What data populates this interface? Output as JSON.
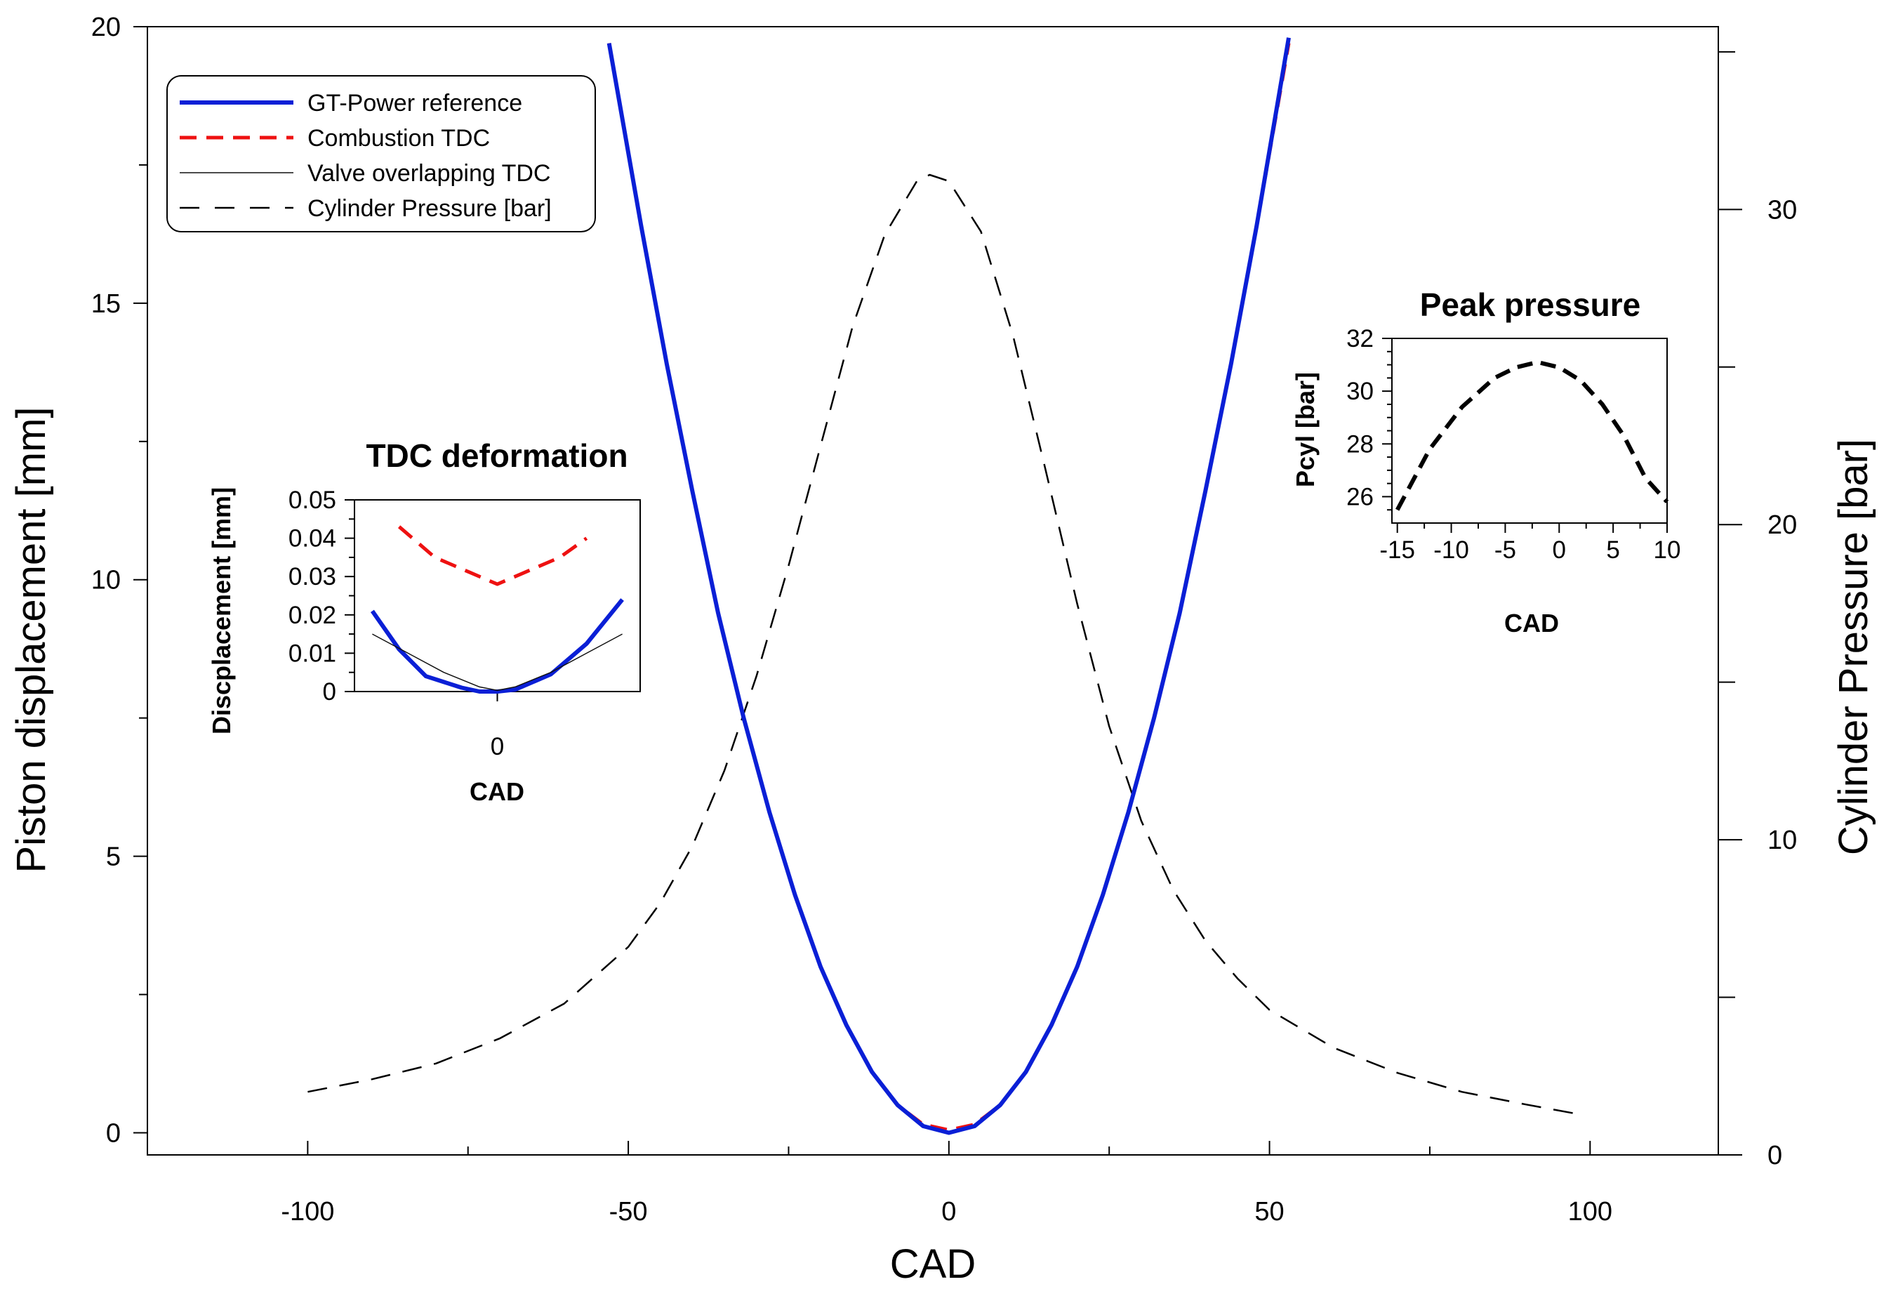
{
  "chart_data": {
    "type": "line",
    "main": {
      "xlabel": "CAD",
      "ylabel": "Piston displacement [mm]",
      "y2label": "Cylinder Pressure [bar]",
      "xlim": [
        -125,
        120
      ],
      "ylim": [
        -0.4,
        20
      ],
      "y2lim": [
        0,
        35.8
      ],
      "xticks": [
        -100,
        -50,
        0,
        50,
        100
      ],
      "yticks": [
        0,
        5,
        10,
        15,
        20
      ],
      "y2ticks": [
        0,
        10,
        20,
        30
      ],
      "legend_position": "top-left",
      "series": [
        {
          "name": "GT-Power reference",
          "axis": "left",
          "style": "solid-blue-thick",
          "x": [
            -53,
            -48,
            -44,
            -40,
            -36,
            -32,
            -28,
            -24,
            -20,
            -16,
            -12,
            -8,
            -4,
            0,
            4,
            8,
            12,
            16,
            20,
            24,
            28,
            32,
            36,
            40,
            44,
            48,
            53
          ],
          "y": [
            19.7,
            16.4,
            13.9,
            11.6,
            9.4,
            7.5,
            5.8,
            4.3,
            3.0,
            1.95,
            1.1,
            0.5,
            0.12,
            0.0,
            0.12,
            0.5,
            1.1,
            1.95,
            3.0,
            4.3,
            5.8,
            7.5,
            9.4,
            11.6,
            13.9,
            16.4,
            19.8
          ]
        },
        {
          "name": "Combustion TDC",
          "axis": "left",
          "style": "dashed-red",
          "x": [
            -53,
            -48,
            -44,
            -40,
            -36,
            -32,
            -28,
            -24,
            -20,
            -16,
            -12,
            -8,
            -4,
            0,
            4,
            8,
            12,
            16,
            20,
            24,
            28,
            32,
            36,
            40,
            44,
            48,
            53
          ],
          "y": [
            19.7,
            16.4,
            13.9,
            11.6,
            9.4,
            7.5,
            5.8,
            4.3,
            3.0,
            1.95,
            1.1,
            0.5,
            0.15,
            0.05,
            0.15,
            0.5,
            1.1,
            1.95,
            3.0,
            4.3,
            5.8,
            7.5,
            9.4,
            11.6,
            13.9,
            16.4,
            19.7
          ]
        },
        {
          "name": "Valve overlapping TDC",
          "axis": "left",
          "style": "solid-thin-black",
          "x": [
            -53,
            -48,
            -44,
            -40,
            -36,
            -32,
            -28,
            -24,
            -20,
            -16,
            -12,
            -8,
            -4,
            0,
            4,
            8,
            12,
            16,
            20,
            24,
            28,
            32,
            36,
            40,
            44,
            48,
            53
          ],
          "y": [
            19.7,
            16.4,
            13.9,
            11.6,
            9.4,
            7.5,
            5.8,
            4.3,
            3.0,
            1.95,
            1.1,
            0.5,
            0.12,
            0.0,
            0.12,
            0.5,
            1.1,
            1.95,
            3.0,
            4.3,
            5.8,
            7.5,
            9.4,
            11.6,
            13.9,
            16.4,
            19.7
          ]
        },
        {
          "name": "Cylinder Pressure [bar]",
          "axis": "right",
          "style": "dashed-black-thin",
          "x": [
            -100,
            -90,
            -80,
            -70,
            -60,
            -50,
            -45,
            -40,
            -35,
            -30,
            -25,
            -20,
            -15,
            -10,
            -5,
            -3,
            0,
            5,
            10,
            15,
            20,
            25,
            30,
            35,
            40,
            45,
            50,
            60,
            70,
            80,
            90,
            98
          ],
          "y": [
            2.0,
            2.4,
            2.9,
            3.7,
            4.8,
            6.6,
            8.0,
            9.8,
            12.2,
            15.2,
            18.7,
            22.5,
            26.3,
            29.2,
            30.9,
            31.1,
            30.9,
            29.3,
            26.0,
            21.8,
            17.5,
            13.6,
            10.6,
            8.4,
            6.8,
            5.6,
            4.6,
            3.4,
            2.6,
            2.0,
            1.6,
            1.3
          ]
        }
      ]
    },
    "inset_tdc": {
      "title": "TDC deformation",
      "xlabel": "CAD",
      "ylabel": "Discplacement [mm]",
      "xlim": [
        -8,
        8
      ],
      "ylim": [
        0,
        0.05
      ],
      "xticks": [
        0
      ],
      "yticks": [
        0,
        0.01,
        0.02,
        0.03,
        0.04,
        0.05
      ],
      "ytick_labels": [
        "0",
        "0.01",
        "0.02",
        "0.03",
        "0.04",
        "0.05"
      ],
      "series": [
        {
          "name": "Combustion TDC",
          "style": "dashed-red",
          "x": [
            -5.5,
            -3.5,
            -1.5,
            0,
            1.5,
            3.5,
            5
          ],
          "y": [
            0.043,
            0.035,
            0.031,
            0.028,
            0.031,
            0.035,
            0.04
          ]
        },
        {
          "name": "GT-Power reference",
          "style": "solid-blue-thick",
          "x": [
            -7,
            -5.5,
            -4,
            -2,
            -1,
            0,
            1,
            3,
            5,
            7
          ],
          "y": [
            0.021,
            0.011,
            0.004,
            0.001,
            0.0,
            0.0,
            0.0005,
            0.0045,
            0.0125,
            0.024
          ]
        },
        {
          "name": "Valve overlapping TDC",
          "style": "solid-thin-black",
          "x": [
            -7,
            -5,
            -3,
            -1,
            0,
            1,
            3,
            5,
            7
          ],
          "y": [
            0.015,
            0.01,
            0.005,
            0.0012,
            0.0003,
            0.0012,
            0.005,
            0.01,
            0.015
          ]
        }
      ]
    },
    "inset_peak": {
      "title": "Peak pressure",
      "xlabel": "CAD",
      "ylabel": "Pcyl [bar]",
      "xlim": [
        -15.5,
        10
      ],
      "ylim": [
        25,
        32
      ],
      "xticks": [
        -15,
        -10,
        -5,
        0,
        5,
        10
      ],
      "yticks": [
        26,
        28,
        30,
        32
      ],
      "series": [
        {
          "name": "Cylinder Pressure [bar]",
          "style": "dashed-black-thick",
          "x": [
            -15,
            -12,
            -9,
            -6,
            -4,
            -2,
            0,
            2,
            4,
            6,
            8,
            10
          ],
          "y": [
            25.5,
            27.8,
            29.4,
            30.5,
            30.9,
            31.1,
            30.9,
            30.4,
            29.5,
            28.3,
            26.7,
            25.8
          ]
        }
      ]
    }
  }
}
